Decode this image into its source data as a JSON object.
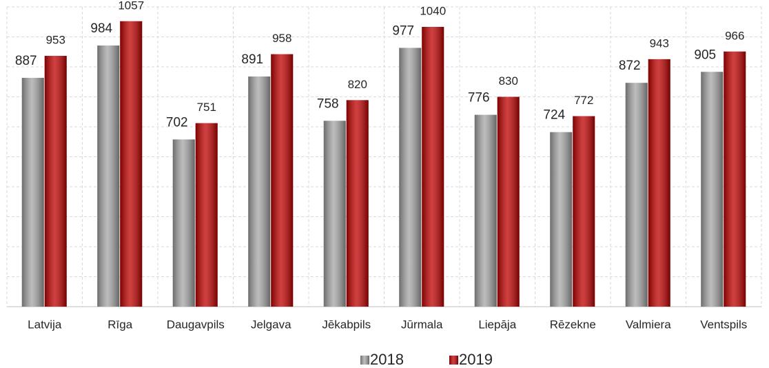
{
  "chart_data": {
    "type": "bar",
    "categories": [
      "Latvija",
      "Rīga",
      "Daugavpils",
      "Jelgava",
      "Jēkabpils",
      "Jūrmala",
      "Liepāja",
      "Rēzekne",
      "Valmiera",
      "Ventspils"
    ],
    "series": [
      {
        "name": "2018",
        "color": "#a6a6a6",
        "values": [
          887,
          984,
          702,
          891,
          758,
          977,
          776,
          724,
          872,
          905
        ]
      },
      {
        "name": "2019",
        "color": "#c00000",
        "values": [
          953,
          1057,
          751,
          958,
          820,
          1040,
          830,
          772,
          943,
          966
        ]
      }
    ],
    "ylim": [
      200,
      1100
    ],
    "yticks": [
      200,
      290,
      380,
      470,
      560,
      650,
      740,
      830,
      920,
      1010,
      1100
    ],
    "grid": true,
    "legend": "bottom"
  }
}
